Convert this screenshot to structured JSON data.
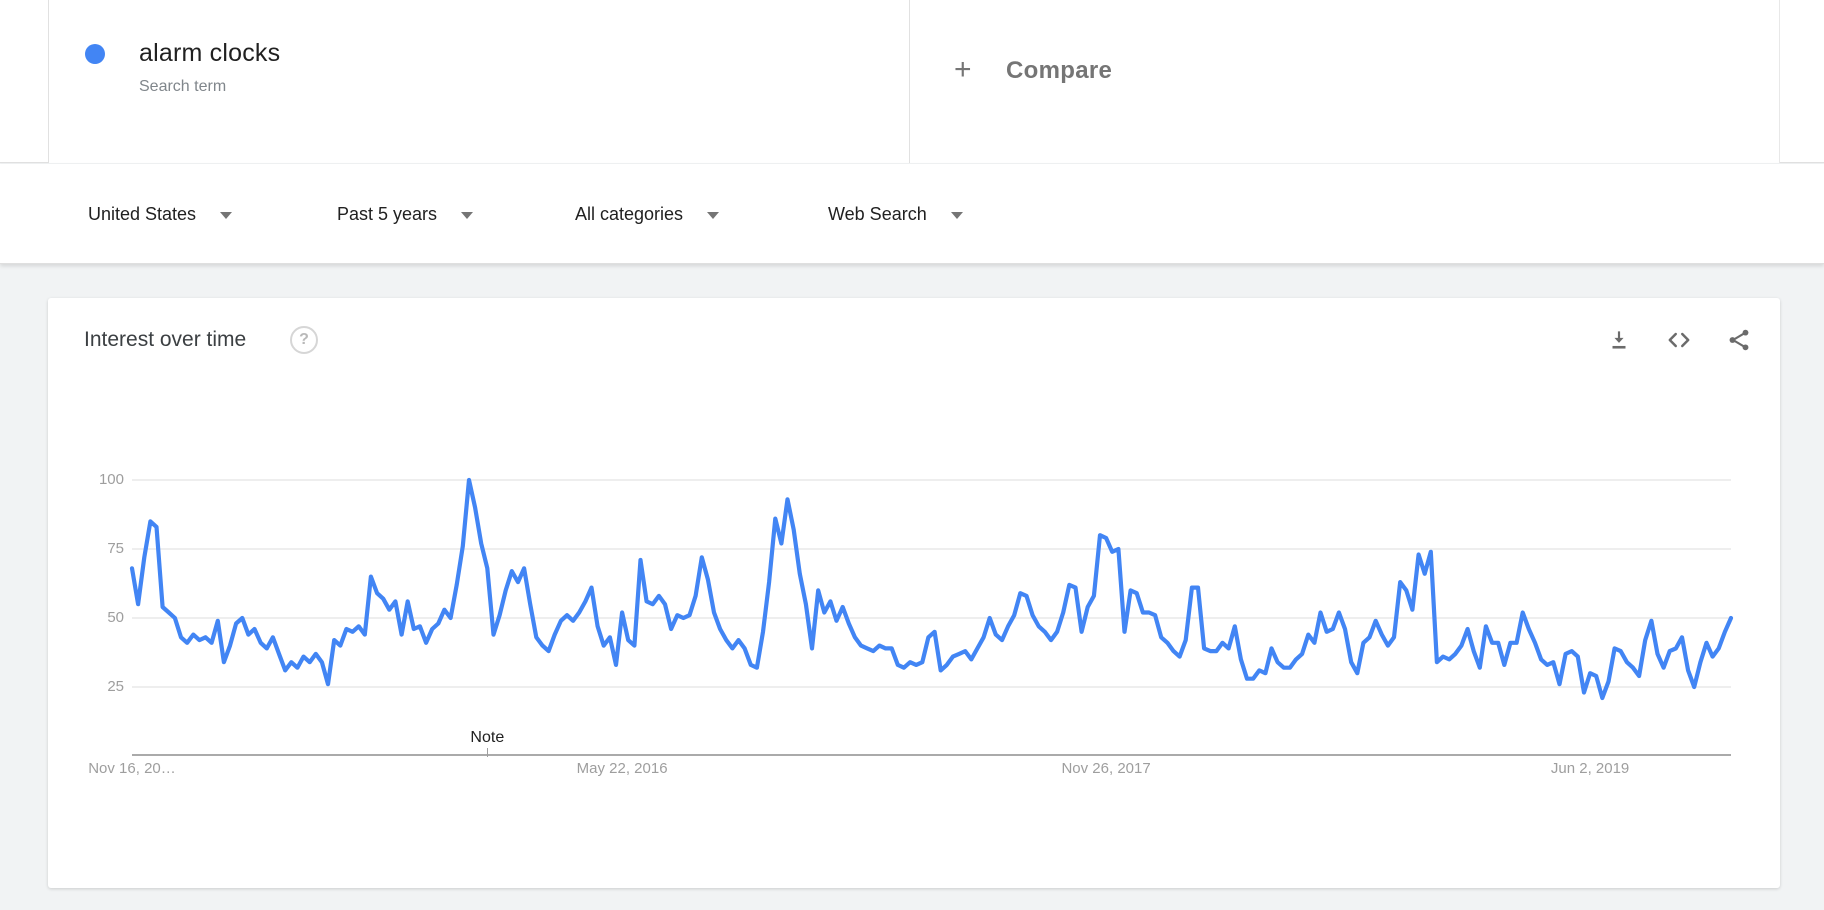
{
  "term_card": {
    "term": "alarm clocks",
    "subtitle": "Search term",
    "dot_color": "#4285f4"
  },
  "compare_card": {
    "plus": "+",
    "label": "Compare"
  },
  "filters": [
    {
      "label": "United States"
    },
    {
      "label": "Past 5 years"
    },
    {
      "label": "All categories"
    },
    {
      "label": "Web Search"
    }
  ],
  "panel": {
    "title": "Interest over time",
    "help": "?",
    "actions": [
      {
        "name": "download-icon"
      },
      {
        "name": "embed-icon"
      },
      {
        "name": "share-icon"
      }
    ]
  },
  "chart_data": {
    "type": "line",
    "title": "Interest over time",
    "series_name": "alarm clocks",
    "line_color": "#4285f4",
    "grid": true,
    "legend_position": "none",
    "y_axis": {
      "ticks": [
        100,
        75,
        50,
        25
      ],
      "range": [
        0,
        100
      ]
    },
    "x_axis": {
      "tick_labels": [
        "Nov 16, 20…",
        "May 22, 2016",
        "Nov 26, 2017",
        "Jun 2, 2019"
      ],
      "tick_weeks": [
        0,
        80,
        159,
        238
      ],
      "unit": "week"
    },
    "annotation": {
      "label": "Note",
      "week": 58
    },
    "values": [
      68,
      55,
      72,
      85,
      83,
      54,
      52,
      50,
      43,
      41,
      44,
      42,
      43,
      41,
      49,
      34,
      40,
      48,
      50,
      44,
      46,
      41,
      39,
      43,
      37,
      31,
      34,
      32,
      36,
      34,
      37,
      34,
      26,
      42,
      40,
      46,
      45,
      47,
      44,
      65,
      59,
      57,
      53,
      56,
      44,
      56,
      46,
      47,
      41,
      46,
      48,
      53,
      50,
      62,
      76,
      100,
      90,
      77,
      68,
      44,
      51,
      60,
      67,
      63,
      68,
      55,
      43,
      40,
      38,
      44,
      49,
      51,
      49,
      52,
      56,
      61,
      47,
      40,
      43,
      33,
      52,
      42,
      40,
      71,
      56,
      55,
      58,
      55,
      46,
      51,
      50,
      51,
      58,
      72,
      64,
      52,
      46,
      42,
      39,
      42,
      39,
      33,
      32,
      45,
      63,
      86,
      77,
      93,
      82,
      66,
      55,
      39,
      60,
      52,
      56,
      49,
      54,
      48,
      43,
      40,
      39,
      38,
      40,
      39,
      39,
      33,
      32,
      34,
      33,
      34,
      43,
      45,
      31,
      33,
      36,
      37,
      38,
      35,
      39,
      43,
      50,
      44,
      42,
      47,
      51,
      59,
      58,
      51,
      47,
      45,
      42,
      45,
      52,
      62,
      61,
      45,
      54,
      58,
      80,
      79,
      74,
      75,
      45,
      60,
      59,
      52,
      52,
      51,
      43,
      41,
      38,
      36,
      42,
      61,
      61,
      39,
      38,
      38,
      41,
      39,
      47,
      35,
      28,
      28,
      31,
      30,
      39,
      34,
      32,
      32,
      35,
      37,
      44,
      41,
      52,
      45,
      46,
      52,
      46,
      34,
      30,
      41,
      43,
      49,
      44,
      40,
      43,
      63,
      60,
      53,
      73,
      66,
      74,
      34,
      36,
      35,
      37,
      40,
      46,
      38,
      32,
      47,
      41,
      41,
      33,
      41,
      41,
      52,
      46,
      41,
      35,
      33,
      34,
      26,
      37,
      38,
      36,
      23,
      30,
      29,
      21,
      27,
      39,
      38,
      34,
      32,
      29,
      42,
      49,
      37,
      32,
      38,
      39,
      43,
      31,
      25,
      34,
      41,
      36,
      39,
      45,
      50
    ]
  }
}
